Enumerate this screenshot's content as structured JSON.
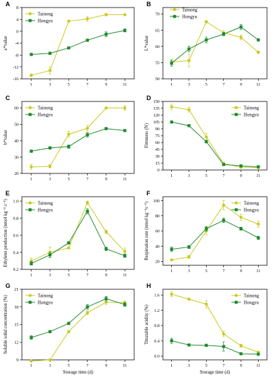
{
  "colors": {
    "series_a": "#c9c920",
    "series_b": "#1f8a2e",
    "axis": "#000000"
  },
  "chart_data": [
    {
      "panel": "A",
      "type": "line",
      "xticks": [
        "1",
        "3",
        "5",
        "7",
        "9",
        "11"
      ],
      "xlabel": "",
      "ylabel": "a*value",
      "ylim": [
        -16,
        8
      ],
      "yticks": [
        "-16",
        "-12",
        "-8",
        "-4",
        "0",
        "4",
        "8"
      ],
      "x": [
        1,
        3,
        5,
        7,
        9,
        11
      ],
      "series": [
        {
          "name": "Tainong",
          "values": [
            -14.8,
            -13.2,
            3.4,
            4.2,
            5.6,
            5.6
          ],
          "err": [
            0.4,
            1.2,
            0.3,
            0.8,
            0.4,
            0.2
          ]
        },
        {
          "name": "Hongyu",
          "values": [
            -7.8,
            -7.4,
            -5.6,
            -3.0,
            -1.0,
            0.3
          ],
          "err": [
            0.4,
            0.4,
            0.3,
            0.3,
            0.8,
            0.5
          ]
        }
      ]
    },
    {
      "panel": "B",
      "type": "line",
      "xticks": [
        "1",
        "3",
        "5",
        "7",
        "9",
        "11"
      ],
      "xlabel": "",
      "ylabel": "L*value",
      "ylim": [
        50,
        72
      ],
      "yticks": [
        "50",
        "55",
        "60",
        "65",
        "70"
      ],
      "x": [
        1,
        3,
        5,
        7,
        9,
        11
      ],
      "series": [
        {
          "name": "Tainong",
          "values": [
            55.2,
            55.6,
            67.6,
            64.2,
            62.8,
            58.2
          ],
          "err": [
            0.8,
            1.9,
            0.4,
            0.7,
            0.7,
            0.4
          ]
        },
        {
          "name": "Hongyu",
          "values": [
            54.8,
            59.2,
            62.0,
            63.8,
            66.0,
            62.0
          ],
          "err": [
            0.9,
            0.9,
            0.9,
            0.5,
            0.8,
            0.4
          ]
        }
      ]
    },
    {
      "panel": "C",
      "type": "line",
      "xticks": [
        "1",
        "3",
        "5",
        "7",
        "9",
        "11"
      ],
      "xlabel": "",
      "ylabel": "b*value",
      "ylim": [
        20,
        64
      ],
      "yticks": [
        "20",
        "30",
        "40",
        "50",
        "60"
      ],
      "x": [
        1,
        3,
        5,
        7,
        9,
        11
      ],
      "series": [
        {
          "name": "Tainong",
          "values": [
            24.0,
            24.4,
            44.0,
            47.6,
            60.0,
            60.0
          ],
          "err": [
            1.5,
            1.0,
            1.8,
            1.8,
            0.6,
            1.4
          ]
        },
        {
          "name": "Hongyu",
          "values": [
            33.6,
            35.6,
            36.4,
            43.6,
            47.4,
            46.2
          ],
          "err": [
            0.7,
            0.7,
            1.0,
            1.4,
            0.6,
            0.7
          ]
        }
      ]
    },
    {
      "panel": "D",
      "type": "line",
      "xticks": [
        "1",
        "3",
        "5",
        "7",
        "9",
        "11"
      ],
      "xlabel": "",
      "ylabel": "Firmness (N)",
      "ylim": [
        0,
        150
      ],
      "yticks": [
        "0",
        "15",
        "30",
        "45",
        "60",
        "75",
        "90",
        "105",
        "120",
        "135",
        "150"
      ],
      "x": [
        1,
        3,
        5,
        7,
        9,
        11
      ],
      "series": [
        {
          "name": "Tainong",
          "values": [
            138,
            132,
            72,
            14,
            6,
            5
          ],
          "err": [
            6,
            5,
            8,
            3,
            1,
            1
          ]
        },
        {
          "name": "Hongyu",
          "values": [
            105,
            97,
            62,
            12,
            9,
            7
          ],
          "err": [
            2,
            2,
            3,
            2,
            1,
            1
          ]
        }
      ]
    },
    {
      "panel": "E",
      "type": "line",
      "xticks": [
        "1",
        "3",
        "5",
        "7",
        "9",
        "11"
      ],
      "xlabel": "",
      "ylabel": "Ethylene production (nmol kg⁻¹ s⁻¹)",
      "ylim": [
        0.2,
        1.05
      ],
      "yticks": [
        "0.2",
        "0.4",
        "0.6",
        "0.8",
        "1.0"
      ],
      "x": [
        1,
        3,
        5,
        7,
        9,
        11
      ],
      "series": [
        {
          "name": "Tainong",
          "values": [
            0.3,
            0.4,
            0.45,
            0.98,
            0.64,
            0.41
          ],
          "err": [
            0.03,
            0.06,
            0.01,
            0.02,
            0.02,
            0.04
          ]
        },
        {
          "name": "Hongyu",
          "values": [
            0.27,
            0.37,
            0.51,
            0.88,
            0.44,
            0.36
          ],
          "err": [
            0.02,
            0.03,
            0.01,
            0.03,
            0.02,
            0.02
          ]
        }
      ]
    },
    {
      "panel": "F",
      "type": "line",
      "xticks": [
        "1",
        "3",
        "5",
        "7",
        "9",
        "11"
      ],
      "xlabel": "",
      "ylabel": "Respiration rate (nmol kg⁻¹s⁻¹)",
      "ylim": [
        15,
        105
      ],
      "yticks": [
        "20",
        "40",
        "60",
        "80",
        "100"
      ],
      "x": [
        1,
        3,
        5,
        7,
        9,
        11
      ],
      "series": [
        {
          "name": "Tainong",
          "values": [
            22,
            26,
            60,
            94,
            78,
            69
          ],
          "err": [
            1,
            2,
            5,
            6,
            4,
            4
          ]
        },
        {
          "name": "Hongyu",
          "values": [
            36,
            39,
            63,
            74,
            63,
            51
          ],
          "err": [
            3,
            2,
            3,
            3,
            2,
            2
          ]
        }
      ]
    },
    {
      "panel": "G",
      "type": "line",
      "xticks": [
        "1",
        "3",
        "5",
        "7",
        "9",
        "11"
      ],
      "xlabel": "Storage time (d)",
      "ylabel": "Soluble solid concentration (%)",
      "ylim": [
        9,
        21
      ],
      "yticks": [
        "9",
        "12",
        "15",
        "18",
        "21"
      ],
      "x": [
        1,
        3,
        5,
        7,
        9,
        11
      ],
      "series": [
        {
          "name": "Tainong",
          "values": [
            8.8,
            9.0,
            13.8,
            17.0,
            18.8,
            18.7
          ],
          "err": [
            0.1,
            0.1,
            0.2,
            0.3,
            0.4,
            0.3
          ]
        },
        {
          "name": "Hongyu",
          "values": [
            12.8,
            13.8,
            15.2,
            18.0,
            19.4,
            18.4
          ],
          "err": [
            0.3,
            0.1,
            0.2,
            0.4,
            0.4,
            0.3
          ]
        }
      ]
    },
    {
      "panel": "H",
      "type": "line",
      "xticks": [
        "1",
        "3",
        "5",
        "7",
        "9",
        "11"
      ],
      "xlabel": "Storage time (d)",
      "ylabel": "Titratable acidity (%)",
      "ylim": [
        -0.1,
        1.75
      ],
      "yticks": [
        "0.0",
        "0.4",
        "0.8",
        "1.2",
        "1.6"
      ],
      "x": [
        1,
        3,
        5,
        7,
        9,
        11
      ],
      "series": [
        {
          "name": "Tainong",
          "values": [
            1.62,
            1.49,
            1.36,
            0.58,
            0.27,
            0.1
          ],
          "err": [
            0.06,
            0.03,
            0.1,
            0.07,
            0.04,
            0.03
          ]
        },
        {
          "name": "Hongyu",
          "values": [
            0.4,
            0.29,
            0.28,
            0.25,
            0.06,
            0.05
          ],
          "err": [
            0.07,
            0.02,
            0.03,
            0.12,
            0.02,
            0.02
          ]
        }
      ]
    }
  ]
}
